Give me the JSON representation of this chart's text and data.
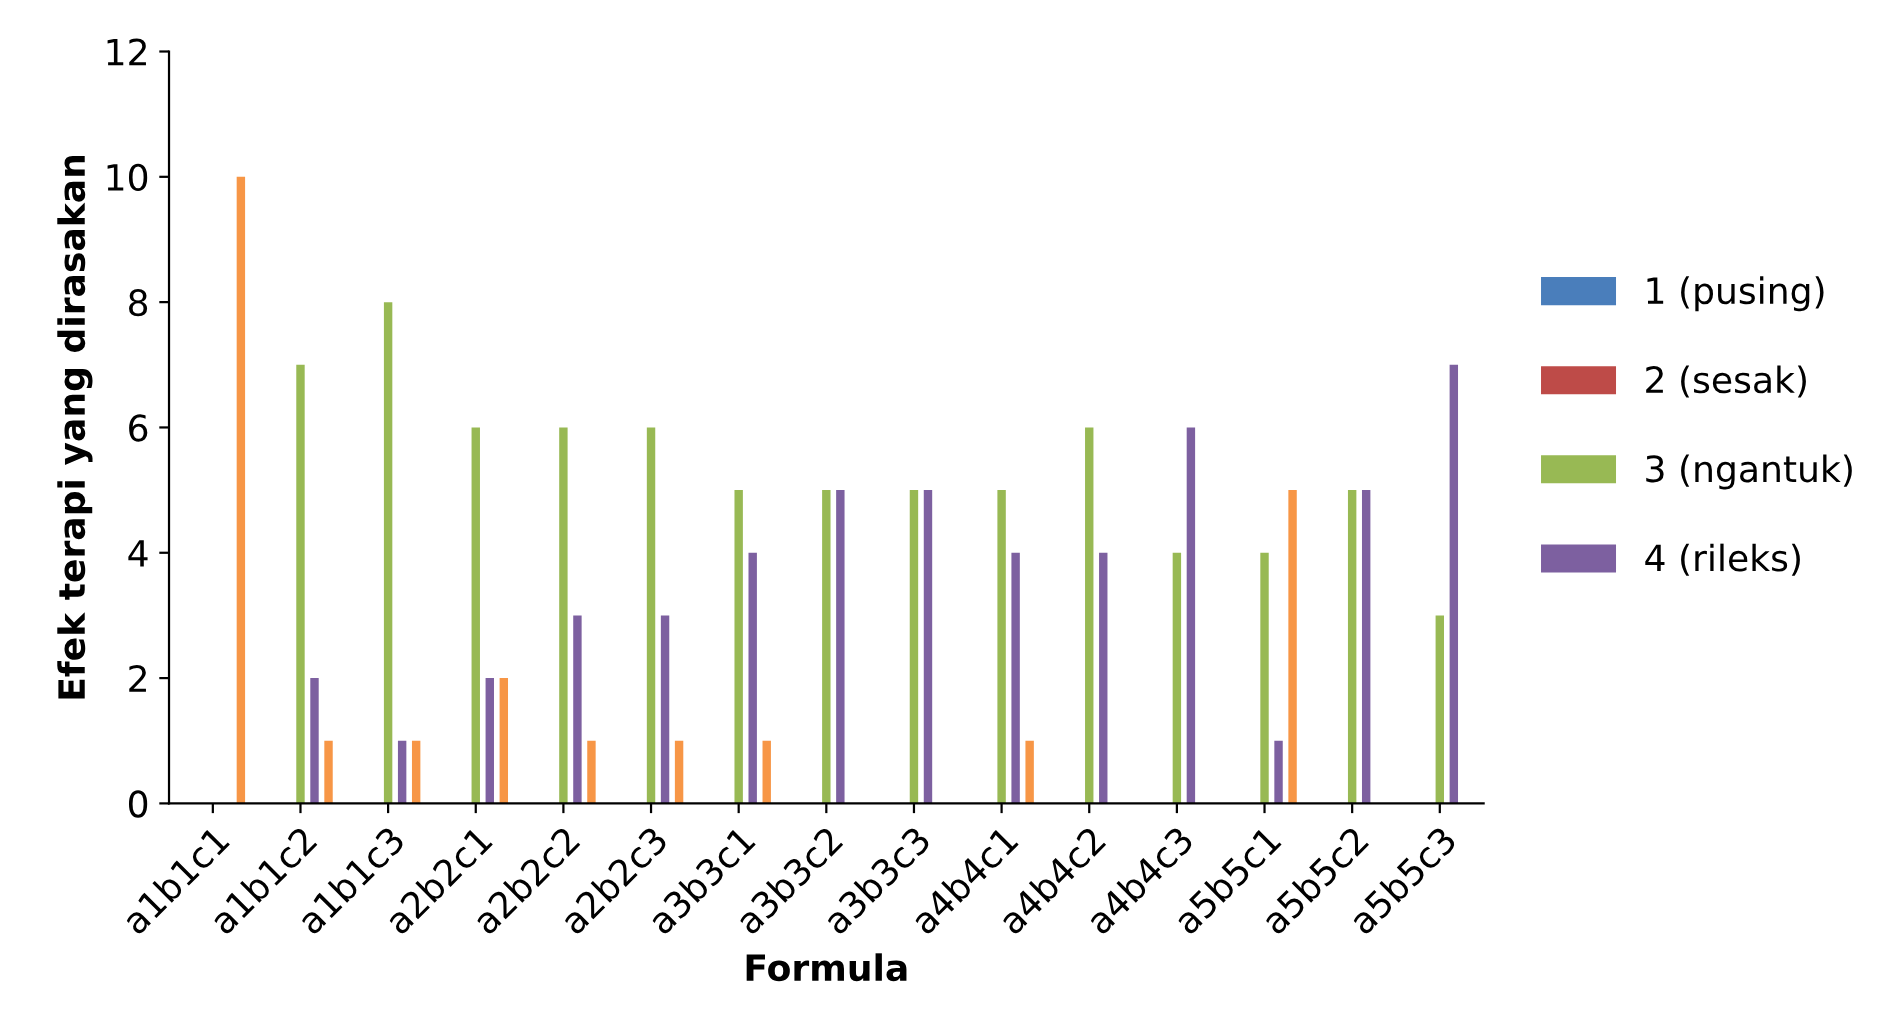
{
  "chart_data": {
    "type": "bar",
    "xlabel": "Formula",
    "ylabel": "Efek terapi yang dirasakan",
    "categories": [
      "a1b1c1",
      "a1b1c2",
      "a1b1c3",
      "a2b2c1",
      "a2b2c2",
      "a2b2c3",
      "a3b3c1",
      "a3b3c2",
      "a3b3c3",
      "a4b4c1",
      "a4b4c2",
      "a4b4c3",
      "a5b5c1",
      "a5b5c2",
      "a5b5c3"
    ],
    "series": [
      {
        "name": "1 (pusing)",
        "color": "#4a7ebb",
        "values": [
          0,
          0,
          0,
          0,
          0,
          0,
          0,
          0,
          0,
          0,
          0,
          0,
          0,
          0,
          0
        ]
      },
      {
        "name": "2 (sesak)",
        "color": "#be4b48",
        "values": [
          0,
          0,
          0,
          0,
          0,
          0,
          0,
          0,
          0,
          0,
          0,
          0,
          0,
          0,
          0
        ]
      },
      {
        "name": "3 (ngantuk)",
        "color": "#98b954",
        "values": [
          0,
          7,
          8,
          6,
          6,
          6,
          5,
          5,
          5,
          5,
          6,
          4,
          4,
          5,
          3
        ]
      },
      {
        "name": "4 (rileks)",
        "color": "#7d60a0",
        "values": [
          0,
          2,
          1,
          2,
          3,
          3,
          4,
          5,
          5,
          4,
          4,
          6,
          1,
          5,
          7
        ]
      },
      {
        "color": "#f79646",
        "values": [
          10,
          1,
          1,
          2,
          1,
          1,
          1,
          0,
          0,
          1,
          0,
          0,
          5,
          0,
          0
        ]
      }
    ],
    "ylim": [
      0,
      12
    ],
    "yticks": [
      0,
      2,
      4,
      6,
      8,
      10,
      12
    ],
    "grid": false,
    "legend": "right"
  }
}
